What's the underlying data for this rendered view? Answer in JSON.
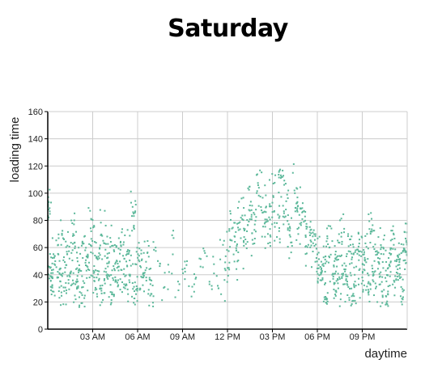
{
  "chart_data": {
    "type": "scatter",
    "title": "Saturday",
    "xlabel": "daytime",
    "ylabel": "loading time",
    "xlim": [
      0,
      24
    ],
    "ylim": [
      0,
      160
    ],
    "x_unit": "hour of day",
    "x_ticks": [
      {
        "value": 3,
        "label": "03 AM"
      },
      {
        "value": 6,
        "label": "06 AM"
      },
      {
        "value": 9,
        "label": "09 AM"
      },
      {
        "value": 12,
        "label": "12 PM"
      },
      {
        "value": 15,
        "label": "03 PM"
      },
      {
        "value": 18,
        "label": "06 PM"
      },
      {
        "value": 21,
        "label": "09 PM"
      }
    ],
    "y_ticks": [
      0,
      20,
      40,
      60,
      80,
      100,
      120,
      140,
      160
    ],
    "grid": true,
    "legend": "none",
    "point_color": "#5cb89a",
    "series": [
      {
        "x": [
          0.05,
          0.15,
          0.3,
          0.5,
          0.7,
          0.9,
          1.1,
          1.3,
          1.5,
          1.7,
          1.9,
          2.1,
          2.3,
          2.5,
          2.7,
          2.9,
          3.1,
          3.3,
          3.5,
          3.7,
          3.9,
          4.1,
          4.3,
          4.5,
          4.7,
          4.9,
          5.1,
          5.3,
          5.5,
          5.7,
          5.9,
          6.1,
          6.3,
          6.6,
          6.9,
          7.2,
          7.5,
          7.8,
          8.1,
          8.4,
          8.7,
          9.0,
          9.3,
          9.6,
          9.9,
          10.2,
          10.5,
          10.8,
          11.1,
          11.4,
          11.7,
          12.0,
          12.3,
          12.6,
          12.9,
          13.2,
          13.5,
          13.8,
          14.1,
          14.4,
          14.7,
          15.0,
          15.3,
          15.6,
          15.9,
          16.2,
          16.5,
          16.8,
          17.1,
          17.4,
          17.7,
          18.0,
          18.2,
          18.4,
          18.6,
          18.8,
          19.0,
          19.2,
          19.4,
          19.6,
          19.8,
          20.0,
          20.2,
          20.4,
          20.6,
          20.8,
          21.0,
          21.2,
          21.4,
          21.6,
          21.8,
          22.0,
          22.2,
          22.4,
          22.6,
          22.8,
          23.0,
          23.2,
          23.4,
          23.6,
          23.8,
          23.95
        ],
        "y": [
          88,
          45,
          32,
          50,
          38,
          62,
          28,
          55,
          41,
          70,
          35,
          47,
          25,
          58,
          44,
          72,
          38,
          52,
          30,
          65,
          42,
          56,
          27,
          48,
          36,
          61,
          33,
          57,
          40,
          86,
          29,
          54,
          38,
          45,
          26,
          60,
          48,
          31,
          42,
          67,
          35,
          44,
          50,
          24,
          38,
          46,
          56,
          33,
          41,
          30,
          62,
          45,
          74,
          58,
          82,
          66,
          91,
          73,
          104,
          86,
          70,
          93,
          78,
          112,
          88,
          68,
          100,
          84,
          79,
          62,
          71,
          55,
          36,
          48,
          22,
          60,
          40,
          52,
          30,
          68,
          44,
          35,
          57,
          26,
          46,
          63,
          38,
          51,
          29,
          72,
          42,
          55,
          33,
          60,
          24,
          47,
          66,
          39,
          53,
          31,
          58,
          64
        ]
      }
    ]
  }
}
